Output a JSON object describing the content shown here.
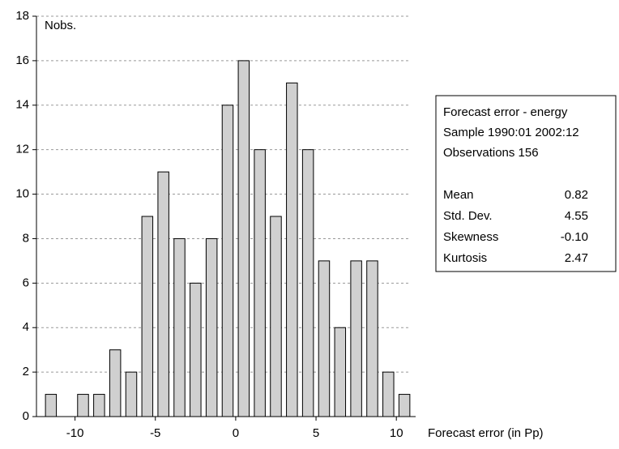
{
  "chart_data": {
    "type": "histogram",
    "y_label": "Nobs.",
    "x_label": "Forecast error (in Pp)",
    "bins": [
      -12,
      -11,
      -10,
      -9,
      -8,
      -7,
      -6,
      -5,
      -4,
      -3,
      -2,
      -1,
      0,
      1,
      2,
      3,
      4,
      5,
      6,
      7,
      8,
      9,
      10,
      11
    ],
    "values": [
      1,
      0,
      1,
      1,
      3,
      2,
      9,
      11,
      8,
      6,
      8,
      14,
      16,
      12,
      9,
      15,
      12,
      7,
      4,
      7,
      7,
      2,
      1
    ],
    "color": "#d0d0d0",
    "xlim": [
      -12.4,
      11.2
    ],
    "xticks": [
      -10,
      -5,
      0,
      5,
      10
    ],
    "ylim": [
      0,
      18
    ],
    "yticks": [
      0,
      2,
      4,
      6,
      8,
      10,
      12,
      14,
      16,
      18
    ],
    "grid": true,
    "stats_box": {
      "lines": [
        "Forecast error - energy",
        "Sample 1990:01 2002:12",
        "Observations 156"
      ],
      "rows": [
        {
          "label": "Mean",
          "value": "0.82"
        },
        {
          "label": "Std. Dev.",
          "value": "4.55"
        },
        {
          "label": "Skewness",
          "value": "-0.10"
        },
        {
          "label": "Kurtosis",
          "value": "2.47"
        }
      ]
    }
  }
}
